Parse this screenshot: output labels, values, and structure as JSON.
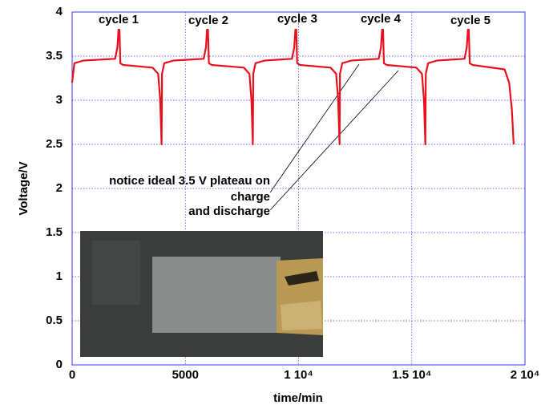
{
  "chart_data": {
    "type": "line",
    "x_label": "time/min",
    "y_label": "Voltage/V",
    "x": [
      0,
      100,
      500,
      1900,
      2000,
      2050,
      2090,
      2130,
      2250,
      3550,
      3800,
      3890,
      3950,
      3970,
      4070,
      4470,
      5810,
      5910,
      5960,
      6000,
      6040,
      6160,
      7580,
      7830,
      7920,
      7980,
      8000,
      8100,
      8500,
      9710,
      9810,
      9860,
      9900,
      9940,
      10060,
      11410,
      11660,
      11750,
      11810,
      11830,
      11930,
      12330,
      13540,
      13640,
      13690,
      13730,
      13770,
      13890,
      15200,
      15450,
      15540,
      15600,
      15620,
      15720,
      16120,
      17330,
      17430,
      17480,
      17520,
      17560,
      17680,
      19100,
      19300,
      19420,
      19500
    ],
    "series": [
      {
        "color": "#e8101c",
        "values": [
          3.2,
          3.42,
          3.45,
          3.47,
          3.6,
          3.8,
          3.8,
          3.42,
          3.4,
          3.37,
          3.3,
          3.0,
          2.5,
          3.3,
          3.42,
          3.45,
          3.47,
          3.6,
          3.8,
          3.8,
          3.42,
          3.4,
          3.37,
          3.3,
          3.0,
          2.5,
          3.3,
          3.42,
          3.45,
          3.47,
          3.6,
          3.8,
          3.8,
          3.42,
          3.4,
          3.37,
          3.3,
          3.0,
          2.5,
          3.3,
          3.42,
          3.45,
          3.47,
          3.6,
          3.8,
          3.8,
          3.42,
          3.4,
          3.37,
          3.3,
          3.0,
          2.5,
          3.3,
          3.42,
          3.45,
          3.47,
          3.6,
          3.8,
          3.8,
          3.42,
          3.4,
          3.35,
          3.2,
          2.9,
          2.5
        ]
      }
    ],
    "xlim": [
      0,
      20000
    ],
    "xticks": [
      0,
      5000,
      {
        "value": 10000,
        "label": "1 10⁴"
      },
      {
        "value": 15000,
        "label": "1.5 10⁴"
      },
      {
        "value": 20000,
        "label": "2 10⁴"
      }
    ],
    "ylim": [
      0,
      4
    ],
    "yticks": [
      0,
      0.5,
      1,
      1.5,
      2,
      2.5,
      3,
      3.5,
      4
    ],
    "grid": true,
    "annotations": [
      "cycle 1",
      "cycle 2",
      "cycle 3",
      "cycle 4",
      "cycle 5",
      "notice ideal 3.5 V plateau on",
      "charge",
      "and discharge"
    ]
  }
}
